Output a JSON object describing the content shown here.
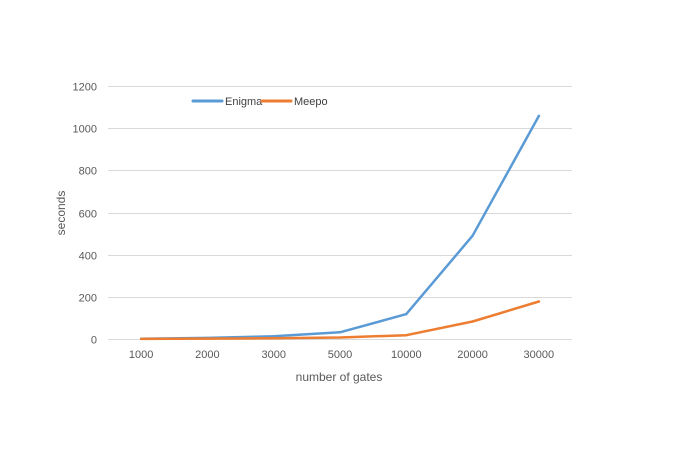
{
  "chart_data": {
    "type": "line",
    "title": "",
    "xlabel": "number of gates",
    "ylabel": "seconds",
    "categories": [
      "1000",
      "2000",
      "3000",
      "5000",
      "10000",
      "20000",
      "30000"
    ],
    "ylim": [
      0,
      1200
    ],
    "yticks": [
      0,
      200,
      400,
      600,
      800,
      1000,
      1200
    ],
    "grid": true,
    "legend_position": "top-left",
    "series": [
      {
        "name": "Enigma",
        "color": "#5b9bd5",
        "values": [
          1,
          5,
          13,
          32,
          118,
          490,
          1058
        ]
      },
      {
        "name": "Meepo",
        "color": "#ed7d31",
        "values": [
          0.5,
          2,
          4,
          7,
          18,
          83,
          178
        ]
      }
    ]
  }
}
